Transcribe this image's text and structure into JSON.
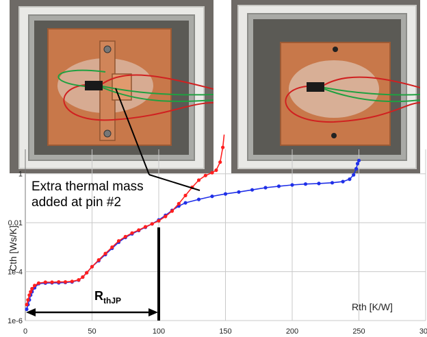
{
  "chart_data": {
    "type": "line",
    "title": "",
    "xlabel": "Rth [K/W]",
    "ylabel": "Cth [Ws/K]",
    "xlim": [
      0,
      300
    ],
    "ylim_log10": [
      -6,
      1
    ],
    "yscale": "log",
    "grid": true,
    "x_ticks": [
      "0",
      "50",
      "100",
      "150",
      "200",
      "250",
      "300"
    ],
    "y_ticks": [
      {
        "label": "1",
        "value": 1
      },
      {
        "label": "0.01",
        "value": 0.01
      },
      {
        "label": "1e-4",
        "value": 0.0001
      },
      {
        "label": "1e-6",
        "value": 1e-06
      }
    ],
    "annotations": {
      "mass_line1": "Extra thermal mass",
      "mass_line2": "added at pin #2",
      "rth_main": "R",
      "rth_sub": "thJP"
    },
    "marker_x": 100,
    "series": [
      {
        "color": "#1f2fe8",
        "points": [
          [
            1,
            2.9e-06
          ],
          [
            2,
            4.5e-06
          ],
          [
            3,
            7e-06
          ],
          [
            4,
            1.1e-05
          ],
          [
            5,
            1.5e-05
          ],
          [
            7,
            2.2e-05
          ],
          [
            10,
            3.2e-05
          ],
          [
            15,
            3.4e-05
          ],
          [
            20,
            3.5e-05
          ],
          [
            25,
            3.5e-05
          ],
          [
            30,
            3.6e-05
          ],
          [
            35,
            3.8e-05
          ],
          [
            40,
            4.5e-05
          ],
          [
            43,
            6e-05
          ],
          [
            46,
            9e-05
          ],
          [
            50,
            0.00016
          ],
          [
            55,
            0.00028
          ],
          [
            60,
            0.0005
          ],
          [
            65,
            0.0009
          ],
          [
            70,
            0.0016
          ],
          [
            75,
            0.0025
          ],
          [
            80,
            0.0035
          ],
          [
            85,
            0.0048
          ],
          [
            90,
            0.0065
          ],
          [
            95,
            0.009
          ],
          [
            100,
            0.013
          ],
          [
            105,
            0.02
          ],
          [
            110,
            0.032
          ],
          [
            115,
            0.048
          ],
          [
            120,
            0.065
          ],
          [
            130,
            0.09
          ],
          [
            140,
            0.12
          ],
          [
            150,
            0.15
          ],
          [
            160,
            0.18
          ],
          [
            170,
            0.22
          ],
          [
            180,
            0.27
          ],
          [
            190,
            0.31
          ],
          [
            200,
            0.35
          ],
          [
            210,
            0.38
          ],
          [
            220,
            0.4
          ],
          [
            230,
            0.43
          ],
          [
            238,
            0.48
          ],
          [
            243,
            0.6
          ],
          [
            246,
            0.9
          ],
          [
            248,
            1.6
          ],
          [
            249,
            2.6
          ],
          [
            250,
            3.5
          ]
        ]
      },
      {
        "color": "#ff1f1f",
        "points": [
          [
            1,
            4.5e-06
          ],
          [
            2,
            7e-06
          ],
          [
            3,
            1.1e-05
          ],
          [
            4,
            1.5e-05
          ],
          [
            5,
            2e-05
          ],
          [
            7,
            2.7e-05
          ],
          [
            10,
            3.4e-05
          ],
          [
            15,
            3.7e-05
          ],
          [
            20,
            3.7e-05
          ],
          [
            25,
            3.8e-05
          ],
          [
            30,
            3.8e-05
          ],
          [
            35,
            4e-05
          ],
          [
            40,
            4.6e-05
          ],
          [
            43,
            6e-05
          ],
          [
            46,
            9e-05
          ],
          [
            50,
            0.00016
          ],
          [
            55,
            0.0003
          ],
          [
            60,
            0.00055
          ],
          [
            65,
            0.001
          ],
          [
            70,
            0.0018
          ],
          [
            75,
            0.0027
          ],
          [
            80,
            0.0038
          ],
          [
            85,
            0.005
          ],
          [
            90,
            0.0068
          ],
          [
            95,
            0.009
          ],
          [
            100,
            0.012
          ],
          [
            105,
            0.018
          ],
          [
            110,
            0.03
          ],
          [
            115,
            0.06
          ],
          [
            120,
            0.13
          ],
          [
            125,
            0.28
          ],
          [
            130,
            0.55
          ],
          [
            135,
            0.85
          ],
          [
            140,
            1.1
          ],
          [
            143,
            1.4
          ],
          [
            146,
            3
          ],
          [
            148,
            12
          ],
          [
            149,
            40
          ]
        ]
      }
    ]
  }
}
